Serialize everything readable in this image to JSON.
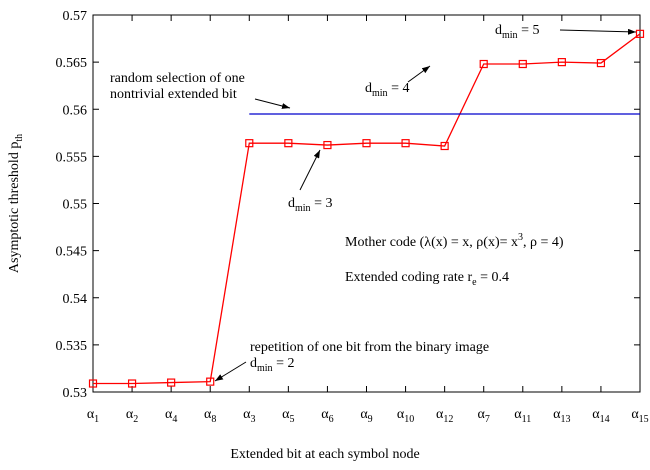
{
  "chart_data": {
    "type": "line",
    "x_label": "Extended bit at each symbol node",
    "y_label": [
      {
        "text": "Asymptotic threshold  p"
      },
      {
        "text": "th",
        "sub": true
      }
    ],
    "categories": [
      "α1",
      "α2",
      "α4",
      "α8",
      "α3",
      "α5",
      "α6",
      "α9",
      "α10",
      "α12",
      "α7",
      "α11",
      "α13",
      "α14",
      "α15"
    ],
    "series": [
      {
        "color": "#ff0000",
        "marker": "square",
        "values": [
          0.5309,
          0.5309,
          0.531,
          0.5311,
          0.5564,
          0.5564,
          0.5562,
          0.5564,
          0.5564,
          0.5561,
          0.5648,
          0.5648,
          0.565,
          0.5649,
          0.568
        ]
      },
      {
        "color": "#0000cc",
        "marker": "none",
        "values": [
          null,
          null,
          null,
          null,
          0.5595,
          0.5595,
          0.5595,
          0.5595,
          0.5595,
          0.5595,
          0.5595,
          0.5595,
          0.5595,
          0.5595,
          0.5595
        ]
      }
    ],
    "ylim": [
      0.53,
      0.57
    ],
    "yticks": [
      0.53,
      0.535,
      0.54,
      0.545,
      0.55,
      0.555,
      0.56,
      0.565,
      0.57
    ],
    "grid": false,
    "annotations": [
      [
        {
          "text": "d"
        },
        {
          "text": "min",
          "sub": true
        },
        {
          "text": " = 5"
        }
      ],
      [
        {
          "text": "d"
        },
        {
          "text": "min",
          "sub": true
        },
        {
          "text": " = 4"
        }
      ],
      [
        {
          "text": "random selection of one"
        }
      ],
      [
        {
          "text": "nontrivial extended bit"
        }
      ],
      [
        {
          "text": "d"
        },
        {
          "text": "min",
          "sub": true
        },
        {
          "text": " = 3"
        }
      ],
      [
        {
          "text": "Mother code (λ(x) = x, ρ(x)= x"
        },
        {
          "text": "3",
          "sup": true
        },
        {
          "text": ", ρ = 4)"
        }
      ],
      [
        {
          "text": "Extended coding rate  r"
        },
        {
          "text": "e",
          "sub": true
        },
        {
          "text": " = 0.4"
        }
      ],
      [
        {
          "text": "repetition of one bit from the binary image"
        }
      ],
      [
        {
          "text": "d"
        },
        {
          "text": "min",
          "sub": true
        },
        {
          "text": " = 2"
        }
      ]
    ]
  }
}
